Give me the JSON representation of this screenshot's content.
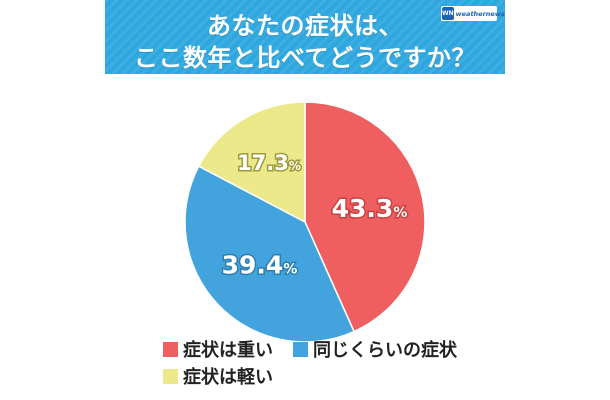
{
  "header": {
    "title_line1": "あなたの症状は、",
    "title_line2": "ここ数年と比べてどうですか？",
    "brand_mark": "WN",
    "brand_name": "weathernews",
    "banner_color": "#2ea6de"
  },
  "chart_data": {
    "type": "pie",
    "title": "あなたの症状は、ここ数年と比べてどうですか？",
    "unit": "%",
    "slices": [
      {
        "label": "症状は重い",
        "value": 43.3,
        "value_text": "43.3",
        "color": "#ef5f5f"
      },
      {
        "label": "同じくらいの症状",
        "value": 39.4,
        "value_text": "39.4",
        "color": "#43a3dc"
      },
      {
        "label": "症状は軽い",
        "value": 17.3,
        "value_text": "17.3",
        "color": "#ece98a"
      }
    ],
    "legend_placement": "bottom"
  }
}
